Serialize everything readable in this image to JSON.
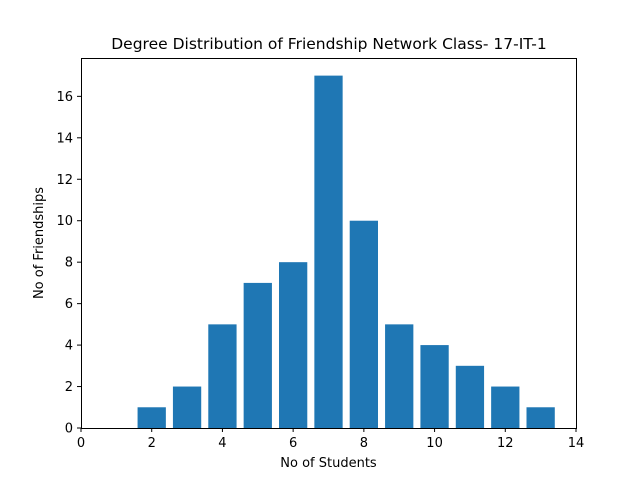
{
  "chart_data": {
    "type": "bar",
    "title": "Degree Distribution of Friendship Network Class- 17-IT-1",
    "xlabel": "No of Students",
    "ylabel": "No of Friendships",
    "x": [
      2,
      3,
      4,
      5,
      6,
      7,
      8,
      9,
      10,
      11,
      12,
      13
    ],
    "values": [
      1,
      2,
      5,
      7,
      8,
      17,
      10,
      5,
      4,
      3,
      2,
      1
    ],
    "bar_width": 0.8,
    "xlim": [
      0,
      14
    ],
    "ylim": [
      0,
      17.85
    ],
    "xticks": [
      0,
      2,
      4,
      6,
      8,
      10,
      12,
      14
    ],
    "yticks": [
      0,
      2,
      4,
      6,
      8,
      10,
      12,
      14,
      16
    ],
    "grid": false,
    "color": "#1f77b4"
  }
}
